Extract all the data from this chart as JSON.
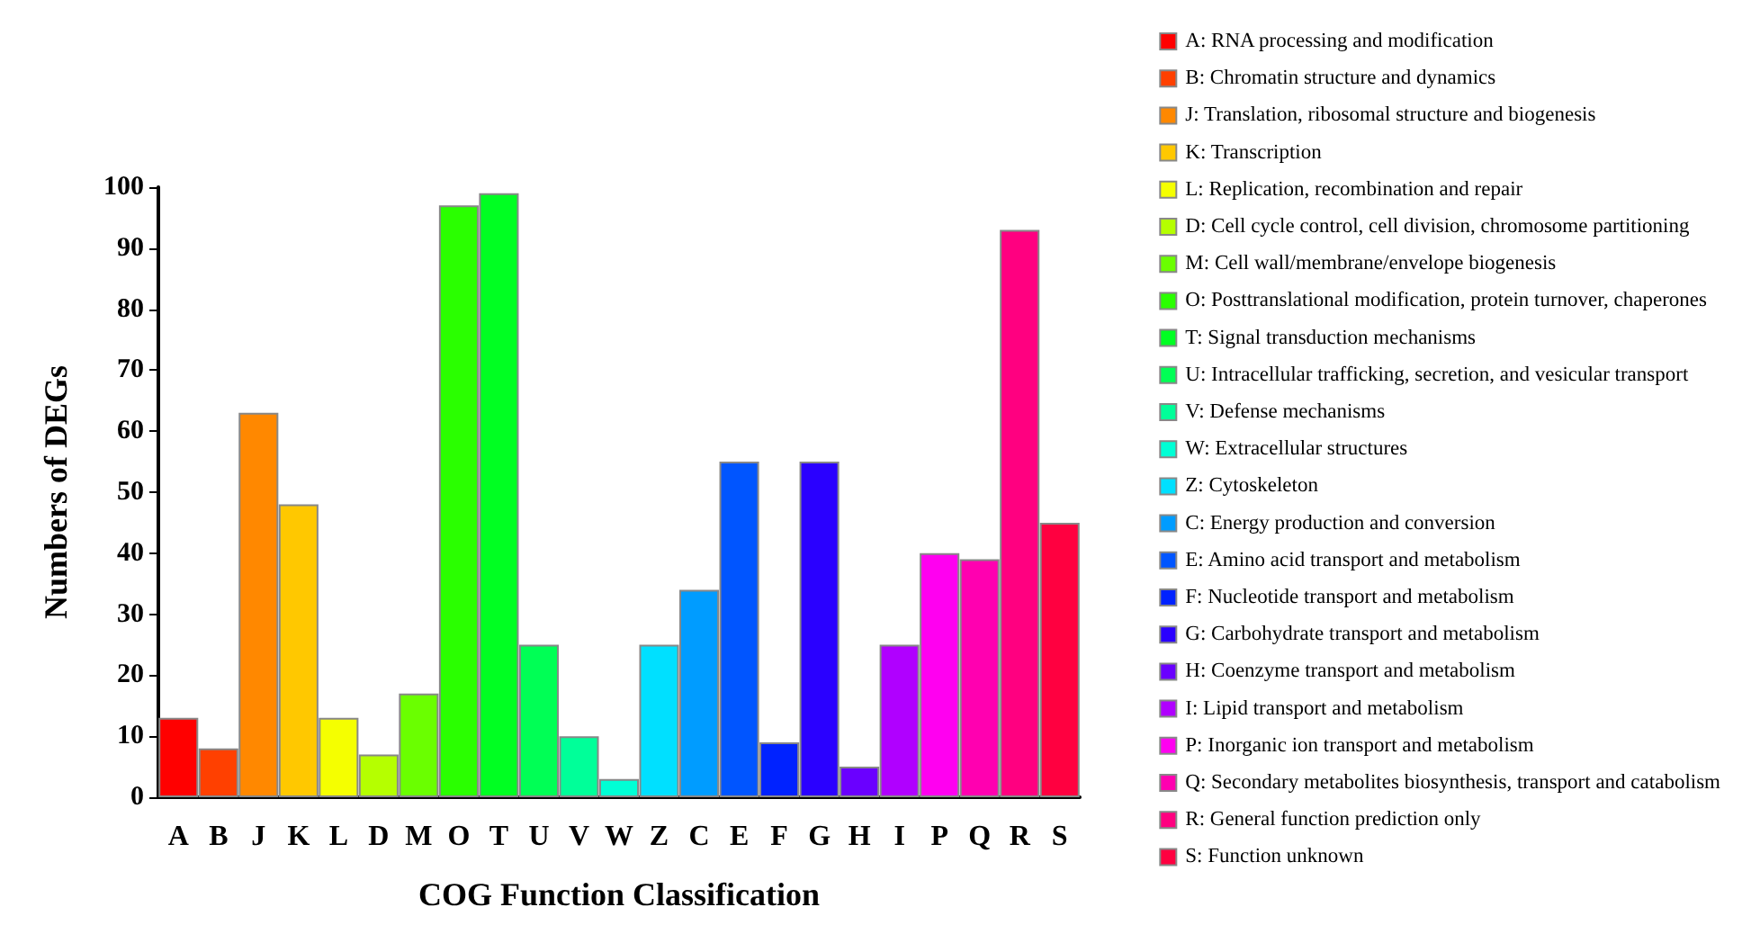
{
  "chart_data": {
    "type": "bar",
    "xlabel": "COG Function Classification",
    "ylabel": "Numbers of DEGs",
    "categories": [
      "A",
      "B",
      "J",
      "K",
      "L",
      "D",
      "M",
      "O",
      "T",
      "U",
      "V",
      "W",
      "Z",
      "C",
      "E",
      "F",
      "G",
      "H",
      "I",
      "P",
      "Q",
      "R",
      "S"
    ],
    "stacked": true,
    "ylim": [
      0,
      100
    ],
    "yticks": [
      0,
      10,
      20,
      30,
      40,
      50,
      60,
      70,
      80,
      90,
      100
    ],
    "grid": false,
    "legend": "right",
    "series": [
      {
        "name": "A: RNA processing and modification",
        "color": "#ff0000",
        "values": [
          13,
          null,
          null,
          null,
          null,
          null,
          null,
          null,
          null,
          null,
          null,
          null,
          null,
          null,
          null,
          null,
          null,
          null,
          null,
          null,
          null,
          null,
          null
        ]
      },
      {
        "name": "B: Chromatin structure and dynamics",
        "color": "#ff4000",
        "values": [
          null,
          8,
          null,
          null,
          null,
          null,
          null,
          null,
          null,
          null,
          null,
          null,
          null,
          null,
          null,
          null,
          null,
          null,
          null,
          null,
          null,
          null,
          null
        ]
      },
      {
        "name": "J: Translation, ribosomal structure and biogenesis",
        "color": "#ff8800",
        "values": [
          null,
          null,
          63,
          null,
          null,
          null,
          null,
          null,
          null,
          null,
          null,
          null,
          null,
          null,
          null,
          null,
          null,
          null,
          null,
          null,
          null,
          null,
          null
        ]
      },
      {
        "name": "K: Transcription",
        "color": "#ffc800",
        "values": [
          null,
          null,
          null,
          48,
          null,
          null,
          null,
          null,
          null,
          null,
          null,
          null,
          null,
          null,
          null,
          null,
          null,
          null,
          null,
          null,
          null,
          null,
          null
        ]
      },
      {
        "name": "L: Replication, recombination and repair",
        "color": "#f5ff00",
        "values": [
          null,
          null,
          null,
          null,
          13,
          null,
          null,
          null,
          null,
          null,
          null,
          null,
          null,
          null,
          null,
          null,
          null,
          null,
          null,
          null,
          null,
          null,
          null
        ]
      },
      {
        "name": "D: Cell cycle control, cell division, chromosome partitioning",
        "color": "#b5ff00",
        "values": [
          null,
          null,
          null,
          null,
          null,
          7,
          null,
          null,
          null,
          null,
          null,
          null,
          null,
          null,
          null,
          null,
          null,
          null,
          null,
          null,
          null,
          null,
          null
        ]
      },
      {
        "name": "M: Cell wall/membrane/envelope biogenesis",
        "color": "#6aff00",
        "values": [
          null,
          null,
          null,
          null,
          null,
          null,
          17,
          null,
          null,
          null,
          null,
          null,
          null,
          null,
          null,
          null,
          null,
          null,
          null,
          null,
          null,
          null,
          null
        ]
      },
      {
        "name": "O: Posttranslational modification, protein turnover, chaperones",
        "color": "#2aff00",
        "values": [
          null,
          null,
          null,
          null,
          null,
          null,
          null,
          97,
          null,
          null,
          null,
          null,
          null,
          null,
          null,
          null,
          null,
          null,
          null,
          null,
          null,
          null,
          null
        ]
      },
      {
        "name": "T: Signal transduction mechanisms",
        "color": "#00ff22",
        "values": [
          null,
          null,
          null,
          null,
          null,
          null,
          null,
          null,
          99,
          null,
          null,
          null,
          null,
          null,
          null,
          null,
          null,
          null,
          null,
          null,
          null,
          null,
          null
        ]
      },
      {
        "name": "U: Intracellular trafficking, secretion, and vesicular transport",
        "color": "#00ff55",
        "values": [
          null,
          null,
          null,
          null,
          null,
          null,
          null,
          null,
          null,
          25,
          null,
          null,
          null,
          null,
          null,
          null,
          null,
          null,
          null,
          null,
          null,
          null,
          null
        ]
      },
      {
        "name": "V: Defense mechanisms",
        "color": "#00ff99",
        "values": [
          null,
          null,
          null,
          null,
          null,
          null,
          null,
          null,
          null,
          null,
          10,
          null,
          null,
          null,
          null,
          null,
          null,
          null,
          null,
          null,
          null,
          null,
          null
        ]
      },
      {
        "name": "W: Extracellular structures",
        "color": "#00ffd5",
        "values": [
          null,
          null,
          null,
          null,
          null,
          null,
          null,
          null,
          null,
          null,
          null,
          3,
          null,
          null,
          null,
          null,
          null,
          null,
          null,
          null,
          null,
          null,
          null
        ]
      },
      {
        "name": "Z: Cytoskeleton",
        "color": "#00e0ff",
        "values": [
          null,
          null,
          null,
          null,
          null,
          null,
          null,
          null,
          null,
          null,
          null,
          null,
          25,
          null,
          null,
          null,
          null,
          null,
          null,
          null,
          null,
          null,
          null
        ]
      },
      {
        "name": "C: Energy production and conversion",
        "color": "#009cff",
        "values": [
          null,
          null,
          null,
          null,
          null,
          null,
          null,
          null,
          null,
          null,
          null,
          null,
          null,
          34,
          null,
          null,
          null,
          null,
          null,
          null,
          null,
          null,
          null
        ]
      },
      {
        "name": "E: Amino acid transport and metabolism",
        "color": "#0055ff",
        "values": [
          null,
          null,
          null,
          null,
          null,
          null,
          null,
          null,
          null,
          null,
          null,
          null,
          null,
          null,
          55,
          null,
          null,
          null,
          null,
          null,
          null,
          null,
          null
        ]
      },
      {
        "name": "F: Nucleotide transport and metabolism",
        "color": "#0022ff",
        "values": [
          null,
          null,
          null,
          null,
          null,
          null,
          null,
          null,
          null,
          null,
          null,
          null,
          null,
          null,
          null,
          9,
          null,
          null,
          null,
          null,
          null,
          null,
          null
        ]
      },
      {
        "name": "G: Carbohydrate transport and metabolism",
        "color": "#2a00ff",
        "values": [
          null,
          null,
          null,
          null,
          null,
          null,
          null,
          null,
          null,
          null,
          null,
          null,
          null,
          null,
          null,
          null,
          55,
          null,
          null,
          null,
          null,
          null,
          null
        ]
      },
      {
        "name": "H: Coenzyme transport and metabolism",
        "color": "#6a00ff",
        "values": [
          null,
          null,
          null,
          null,
          null,
          null,
          null,
          null,
          null,
          null,
          null,
          null,
          null,
          null,
          null,
          null,
          null,
          5,
          null,
          null,
          null,
          null,
          null
        ]
      },
      {
        "name": "I: Lipid transport and metabolism",
        "color": "#b000ff",
        "values": [
          null,
          null,
          null,
          null,
          null,
          null,
          null,
          null,
          null,
          null,
          null,
          null,
          null,
          null,
          null,
          null,
          null,
          null,
          25,
          null,
          null,
          null,
          null
        ]
      },
      {
        "name": "P: Inorganic ion transport and metabolism",
        "color": "#ff00f0",
        "values": [
          null,
          null,
          null,
          null,
          null,
          null,
          null,
          null,
          null,
          null,
          null,
          null,
          null,
          null,
          null,
          null,
          null,
          null,
          null,
          40,
          null,
          null,
          null
        ]
      },
      {
        "name": "Q: Secondary metabolites biosynthesis, transport and catabolism",
        "color": "#ff00b0",
        "values": [
          null,
          null,
          null,
          null,
          null,
          null,
          null,
          null,
          null,
          null,
          null,
          null,
          null,
          null,
          null,
          null,
          null,
          null,
          null,
          null,
          39,
          null,
          null
        ]
      },
      {
        "name": "R: General function prediction only",
        "color": "#ff0080",
        "values": [
          null,
          null,
          null,
          null,
          null,
          null,
          null,
          null,
          null,
          null,
          null,
          null,
          null,
          null,
          null,
          null,
          null,
          null,
          null,
          null,
          null,
          93,
          null
        ]
      },
      {
        "name": "S: Function unknown",
        "color": "#ff0040",
        "values": [
          null,
          null,
          null,
          null,
          null,
          null,
          null,
          null,
          null,
          null,
          null,
          null,
          null,
          null,
          null,
          null,
          null,
          null,
          null,
          null,
          null,
          null,
          45
        ]
      }
    ]
  }
}
